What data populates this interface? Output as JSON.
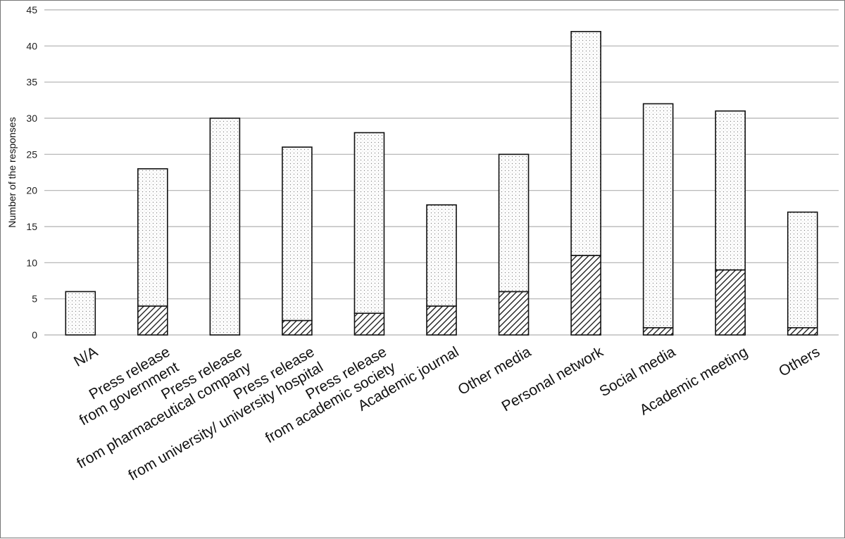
{
  "chart_data": {
    "type": "bar",
    "stacked": true,
    "title": "",
    "xlabel": "",
    "ylabel": "Number of the responses",
    "ylim": [
      0,
      45
    ],
    "yticks": [
      0,
      5,
      10,
      15,
      20,
      25,
      30,
      35,
      40,
      45
    ],
    "grid": true,
    "categories": [
      [
        "N/A"
      ],
      [
        "Press release",
        "from government"
      ],
      [
        "Press release",
        "from pharmaceutical company"
      ],
      [
        "Press release",
        "from university/ university hospital"
      ],
      [
        "Press release",
        "from academic society"
      ],
      [
        "Academic journal"
      ],
      [
        "Other media"
      ],
      [
        "Personal network"
      ],
      [
        "Social media"
      ],
      [
        "Academic meeting"
      ],
      [
        "Others"
      ]
    ],
    "series": [
      {
        "pattern": "hatched",
        "values": [
          0,
          4,
          0,
          2,
          3,
          4,
          6,
          11,
          1,
          9,
          1
        ]
      },
      {
        "pattern": "dotted",
        "values": [
          6,
          19,
          30,
          24,
          25,
          14,
          19,
          31,
          31,
          22,
          16
        ]
      }
    ],
    "totals": [
      6,
      23,
      30,
      26,
      28,
      18,
      25,
      42,
      32,
      31,
      17
    ],
    "colors": {
      "grid": "#b0b0b0",
      "bar_stroke": "#111111",
      "dot": "#8a8a8a"
    }
  }
}
